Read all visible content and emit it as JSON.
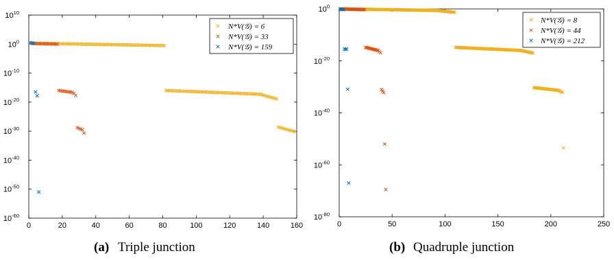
{
  "chart_data": [
    {
      "type": "scatter",
      "caption_letter": "(a)",
      "caption_text": "Triple junction",
      "xlim": [
        0,
        160
      ],
      "xticks": [
        0,
        20,
        40,
        60,
        80,
        100,
        120,
        140,
        160
      ],
      "yscale": "log",
      "ylim_exp": [
        -60,
        10
      ],
      "yticks_exp": [
        10,
        0,
        -10,
        -20,
        -30,
        -40,
        -50,
        -60
      ],
      "grid": false,
      "legend_position": "top-right",
      "series": [
        {
          "name": "N_V^*(G) = 6",
          "legend_label": "N*V(𝒢) = 6",
          "color": "#EDB120",
          "segments": [
            {
              "x_start": 1,
              "x_end": 81,
              "logy_start": 0.3,
              "logy_end": -0.5
            },
            {
              "x_start": 82,
              "x_end": 148,
              "logy_start": -16,
              "logy_end": -17.5,
              "tail_drop": -1.4
            },
            {
              "x_start": 149,
              "x_end": 159,
              "logy_start": -28.6,
              "logy_end": -30.2
            }
          ]
        },
        {
          "name": "N_V^*(G) = 33",
          "legend_label": "N*V(𝒢) = 33",
          "color": "#D95319",
          "segments": [
            {
              "x_start": 2,
              "x_end": 17,
              "logy_start": 0.2,
              "logy_end": 0.0
            },
            {
              "x_start": 18,
              "x_end": 28,
              "logy_start": -16,
              "logy_end": -16.8,
              "tail_drop": -0.9
            },
            {
              "x_start": 29,
              "x_end": 33,
              "logy_start": -28.8,
              "logy_end": -29.8,
              "tail_drop": -0.9
            }
          ]
        },
        {
          "name": "N_V^*(G) = 159",
          "legend_label": "N*V(𝒢) = 159",
          "color": "#0072BD",
          "points": [
            [
              1,
              0.5
            ],
            [
              2,
              0.4
            ],
            [
              3,
              0.3
            ],
            [
              4,
              -16.5
            ],
            [
              5,
              -17.8
            ],
            [
              6,
              -51
            ]
          ]
        }
      ],
      "legend_line1": "N*V(𝒢) = 6",
      "legend_line2": "N*V(𝒢) = 33",
      "legend_line3": "N*V(𝒢) = 159"
    },
    {
      "type": "scatter",
      "caption_letter": "(b)",
      "caption_text": "Quadruple junction",
      "xlim": [
        0,
        250
      ],
      "xticks": [
        0,
        50,
        100,
        150,
        200,
        250
      ],
      "yscale": "log",
      "ylim_exp": [
        -80,
        0
      ],
      "yticks_exp": [
        0,
        -20,
        -40,
        -60,
        -80
      ],
      "grid": false,
      "legend_position": "top-right",
      "series": [
        {
          "name": "N_V^*(G) = 8",
          "legend_label": "N*V(𝒢) = 8",
          "color": "#EDB120",
          "segments": [
            {
              "x_start": 1,
              "x_end": 109,
              "logy_start": 0.0,
              "logy_end": -0.7,
              "tail_drop": -0.6
            },
            {
              "x_start": 110,
              "x_end": 183,
              "logy_start": -14.8,
              "logy_end": -16.2,
              "tail_drop": -0.8
            },
            {
              "x_start": 184,
              "x_end": 211,
              "logy_start": -30.3,
              "logy_end": -31.5,
              "tail_drop": -0.6
            }
          ],
          "points": [
            [
              212,
              -53.5
            ]
          ]
        },
        {
          "name": "N_V^*(G) = 44",
          "legend_label": "N*V(𝒢) = 44",
          "color": "#D95319",
          "segments": [
            {
              "x_start": 1,
              "x_end": 24,
              "logy_start": 0.0,
              "logy_end": -0.3
            },
            {
              "x_start": 25,
              "x_end": 39,
              "logy_start": -14.8,
              "logy_end": -16.2,
              "tail_drop": -0.7
            },
            {
              "x_start": 40,
              "x_end": 42,
              "logy_start": -31.0,
              "logy_end": -32.2
            }
          ],
          "points": [
            [
              43,
              -52.0
            ],
            [
              44,
              -69.5
            ]
          ]
        },
        {
          "name": "N_V^*(G) = 212",
          "legend_label": "N*V(𝒢) = 212",
          "color": "#0072BD",
          "points": [
            [
              1,
              -0.1
            ],
            [
              2,
              -0.2
            ],
            [
              3,
              -0.2
            ],
            [
              4,
              -0.3
            ],
            [
              5,
              -15.4
            ],
            [
              6,
              -15.6
            ],
            [
              7,
              -15.4
            ],
            [
              8,
              -30.9
            ],
            [
              9,
              -67.0
            ]
          ]
        }
      ],
      "legend_line1": "N*V(𝒢) = 8",
      "legend_line2": "N*V(𝒢) = 44",
      "legend_line3": "N*V(𝒢) = 212"
    }
  ]
}
